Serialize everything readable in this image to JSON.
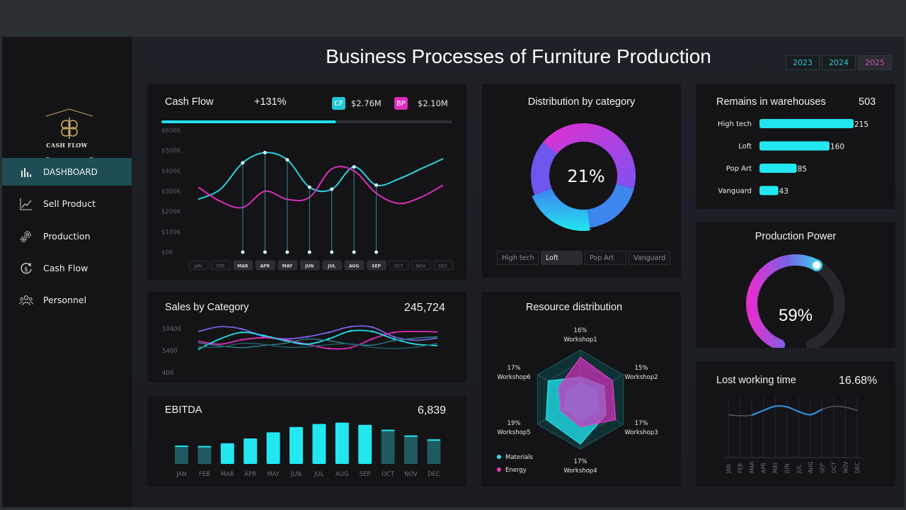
{
  "title": "Business Processes of Furniture Production",
  "years": [
    "2023",
    "2024",
    "2025"
  ],
  "selected_year": "2025",
  "logo_text": "CASH FLOW",
  "nav": [
    {
      "label": "DASHBOARD",
      "icon": "bar-chart-icon",
      "active": true
    },
    {
      "label": "Sell Product",
      "icon": "line-chart-icon",
      "active": false
    },
    {
      "label": "Production",
      "icon": "gears-icon",
      "active": false
    },
    {
      "label": "Cash Flow",
      "icon": "dollar-cycle-icon",
      "active": false
    },
    {
      "label": "Personnel",
      "icon": "people-icon",
      "active": false
    }
  ],
  "colors": {
    "cyan": "#22e3ee",
    "magenta": "#e132c4",
    "accent_bg": "#1f4d55"
  },
  "cash_flow": {
    "title": "Cash Flow",
    "change": "+131%",
    "cf_label": "CF",
    "cf_value": "$2.76M",
    "bp_label": "BP",
    "bp_value": "$2.10M",
    "progress": 0.6
  },
  "distribution": {
    "title": "Distribution by category",
    "center": "21%",
    "tabs": [
      "High tech",
      "Loft",
      "Pop Art",
      "Vanguard"
    ],
    "selected_tab": "Loft"
  },
  "remains": {
    "title": "Remains in warehouses",
    "total": "503",
    "items": [
      {
        "label": "High tech",
        "value": 215
      },
      {
        "label": "Loft",
        "value": 160
      },
      {
        "label": "Pop Art",
        "value": 85
      },
      {
        "label": "Vanguard",
        "value": 43
      }
    ]
  },
  "production_power": {
    "title": "Production Power",
    "value": "59%",
    "fraction": 0.59
  },
  "sales": {
    "title": "Sales by Category",
    "total": "245,724",
    "ticks": [
      "10400",
      "5400",
      "400"
    ]
  },
  "ebitda": {
    "title": "EBITDA",
    "total": "6,839"
  },
  "resource": {
    "title": "Resource distribution",
    "legend": [
      "Materials",
      "Energy"
    ],
    "axes": [
      {
        "pct": "16%",
        "name": "Workshop1"
      },
      {
        "pct": "15%",
        "name": "Workshop2"
      },
      {
        "pct": "17%",
        "name": "Workshop3"
      },
      {
        "pct": "17%",
        "name": "Workshop4"
      },
      {
        "pct": "19%",
        "name": "Workshop5"
      },
      {
        "pct": "17%",
        "name": "Workshop6"
      }
    ]
  },
  "lost_time": {
    "title": "Lost working time",
    "value": "16.68%"
  },
  "chart_data": [
    {
      "type": "line",
      "title": "Cash Flow",
      "categories": [
        "JAN",
        "FEB",
        "MAR",
        "APR",
        "MAY",
        "JUN",
        "JUL",
        "AUG",
        "SEP",
        "OCT",
        "NOV",
        "DEC"
      ],
      "y_ticks": [
        "$600K",
        "$500K",
        "$400K",
        "$300K",
        "$200K",
        "$100K",
        "$0K"
      ],
      "ylim": [
        0,
        600
      ],
      "highlighted": [
        "MAR",
        "APR",
        "MAY",
        "JUN",
        "JUL",
        "AUG",
        "SEP"
      ],
      "series": [
        {
          "name": "CF",
          "values": [
            260,
            310,
            440,
            490,
            455,
            320,
            310,
            420,
            330,
            360,
            410,
            460
          ]
        },
        {
          "name": "BP",
          "values": [
            320,
            250,
            220,
            300,
            260,
            270,
            410,
            400,
            290,
            240,
            270,
            330
          ]
        }
      ]
    },
    {
      "type": "pie",
      "title": "Distribution by category",
      "categories": [
        "High tech",
        "Loft",
        "Pop Art",
        "Vanguard"
      ],
      "values": [
        43,
        21,
        17,
        19
      ]
    },
    {
      "type": "bar",
      "title": "Remains in warehouses",
      "categories": [
        "High tech",
        "Loft",
        "Pop Art",
        "Vanguard"
      ],
      "values": [
        215,
        160,
        85,
        43
      ]
    },
    {
      "type": "line",
      "title": "Sales by Category",
      "categories": [
        "JAN",
        "FEB",
        "MAR",
        "APR",
        "MAY",
        "JUN",
        "JUL",
        "AUG",
        "SEP",
        "OCT",
        "NOV",
        "DEC"
      ],
      "y_ticks": [
        "10400",
        "5400",
        "400"
      ],
      "ylim": [
        400,
        12400
      ],
      "series": [
        {
          "values": [
            9800,
            10900,
            10400,
            8700,
            8100,
            8600,
            9600,
            10900,
            10800,
            8600,
            7800,
            8300
          ]
        },
        {
          "values": [
            7600,
            6900,
            7900,
            8400,
            7900,
            6900,
            5900,
            6100,
            8100,
            9600,
            9800,
            9700
          ]
        },
        {
          "values": [
            5700,
            8100,
            9600,
            8900,
            7700,
            6900,
            8100,
            9900,
            9800,
            8100,
            6900,
            6600
          ]
        },
        {
          "values": [
            7200,
            6500,
            6100,
            6600,
            7100,
            8100,
            7700,
            6900,
            6700,
            7700,
            8300,
            8600
          ]
        },
        {
          "values": [
            6300,
            6200,
            7100,
            6900,
            6200,
            6300,
            6800,
            7000,
            6200,
            5900,
            6200,
            7100
          ]
        }
      ]
    },
    {
      "type": "bar",
      "title": "EBITDA",
      "categories": [
        "JAN",
        "FEB",
        "MAR",
        "APR",
        "MAY",
        "JUN",
        "JUL",
        "AUG",
        "SEP",
        "OCT",
        "NOV",
        "DEC"
      ],
      "values": [
        420,
        410,
        470,
        580,
        720,
        840,
        910,
        940,
        890,
        780,
        650,
        560
      ]
    },
    {
      "type": "radar",
      "title": "Resource distribution",
      "categories": [
        "Workshop1",
        "Workshop2",
        "Workshop3",
        "Workshop4",
        "Workshop5",
        "Workshop6"
      ],
      "series": [
        {
          "name": "Materials",
          "values": [
            0.45,
            0.55,
            0.6,
            0.9,
            0.8,
            0.75
          ]
        },
        {
          "name": "Energy",
          "values": [
            0.85,
            0.75,
            0.82,
            0.55,
            0.45,
            0.5
          ]
        }
      ]
    },
    {
      "type": "line",
      "title": "Lost working time",
      "categories": [
        "JAN",
        "FEB",
        "MAR",
        "APR",
        "MAY",
        "JUN",
        "JUL",
        "AUG",
        "SEP",
        "OCT",
        "NOV",
        "DEC"
      ],
      "values": [
        0.35,
        0.3,
        0.33,
        0.55,
        0.75,
        0.72,
        0.5,
        0.35,
        0.6,
        0.75,
        0.7,
        0.55
      ],
      "highlighted": [
        "MAR",
        "APR",
        "MAY",
        "JUN",
        "JUL",
        "AUG",
        "SEP"
      ]
    }
  ]
}
